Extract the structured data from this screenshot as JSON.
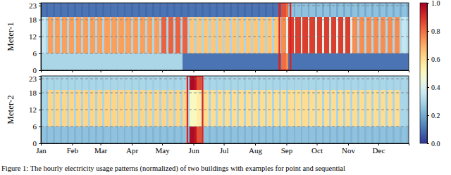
{
  "chart_data": {
    "type": "heatmap",
    "color": "RdYlBu_r",
    "grid": true,
    "x": [
      0,
      5,
      7,
      12,
      14,
      19,
      21,
      26,
      28,
      33,
      35,
      40,
      42,
      47,
      49,
      54,
      56,
      61,
      63,
      68,
      70,
      75,
      77,
      82,
      84,
      89,
      91,
      96,
      98,
      103,
      105,
      110,
      112,
      117,
      119,
      124,
      126,
      131,
      133,
      138,
      140,
      145,
      147,
      152,
      154,
      159,
      161,
      166,
      168,
      173,
      175,
      180,
      182,
      187,
      189,
      194,
      196,
      201,
      203,
      208,
      210,
      215,
      217,
      222,
      224,
      229,
      231,
      236,
      238,
      243,
      245,
      250,
      252,
      257,
      259,
      264,
      266,
      271,
      273,
      278,
      280,
      285,
      287,
      292,
      294,
      299,
      301,
      306,
      308,
      313,
      315,
      320,
      322,
      327,
      329,
      334,
      336,
      341,
      343,
      348,
      350,
      355,
      357,
      362
    ],
    "y": [
      0,
      6,
      19
    ],
    "xlim": [
      0,
      364
    ],
    "xticks": [
      {
        "value": 0,
        "label": "Jan"
      },
      {
        "value": 31,
        "label": "Feb"
      },
      {
        "value": 59,
        "label": "Mar"
      },
      {
        "value": 90,
        "label": "Apr"
      },
      {
        "value": 120,
        "label": "May"
      },
      {
        "value": 151,
        "label": "Jun"
      },
      {
        "value": 181,
        "label": "Jul"
      },
      {
        "value": 212,
        "label": "Aug"
      },
      {
        "value": 243,
        "label": "Sep"
      },
      {
        "value": 273,
        "label": "Oct"
      },
      {
        "value": 304,
        "label": "Nov"
      },
      {
        "value": 334,
        "label": "Dec"
      }
    ],
    "ylim": [
      0,
      24
    ],
    "yticks": [
      0,
      6,
      12,
      18,
      23
    ],
    "colorbar": {
      "lim": [
        0,
        1
      ],
      "ticks": [
        {
          "value": 0,
          "label": "0.0"
        },
        {
          "value": 0.2,
          "label": "0.2"
        },
        {
          "value": 0.4,
          "label": "0.4"
        },
        {
          "value": 0.6,
          "label": "0.6"
        },
        {
          "value": 0.8,
          "label": "0.8"
        },
        {
          "value": 1,
          "label": "1.0"
        }
      ]
    },
    "panels": [
      {
        "ylabel": "Meter-1",
        "cells": [
          [
            0.3,
            0.3,
            0.3,
            0.3,
            0.3,
            0.3,
            0.3,
            0.3,
            0.3,
            0.3,
            0.3,
            0.3,
            0.3,
            0.3,
            0.3,
            0.3,
            0.3,
            0.3,
            0.3,
            0.3,
            0.3,
            0.3,
            0.3,
            0.3,
            0.3,
            0.3,
            0.3,
            0.3,
            0.3,
            0.3,
            0.3,
            0.3,
            0.3,
            0.3,
            0.3,
            0.3,
            0.3,
            0.3,
            0.3,
            0.3,
            0.1,
            0.1,
            0.1,
            0.1,
            0.1,
            0.1,
            0.1,
            0.1,
            0.1,
            0.1,
            0.1,
            0.1,
            0.1,
            0.1,
            0.1,
            0.1,
            0.1,
            0.1,
            0.1,
            0.1,
            0.1,
            0.1,
            0.1,
            0.1,
            0.1,
            0.1,
            0.1,
            0.1,
            0.8,
            0.75,
            0.1,
            0.1,
            0.1,
            0.1,
            0.1,
            0.1,
            0.1,
            0.1,
            0.1,
            0.1,
            0.1,
            0.1,
            0.1,
            0.1,
            0.1,
            0.1,
            0.1,
            0.1,
            0.1,
            0.1,
            0.1,
            0.1,
            0.1,
            0.1,
            0.1,
            0.1,
            0.1,
            0.1,
            0.1,
            0.1,
            0.1,
            0.1,
            0.1,
            0.1
          ],
          [
            0.35,
            0.3,
            0.72,
            0.3,
            0.72,
            0.3,
            0.72,
            0.3,
            0.72,
            0.3,
            0.72,
            0.3,
            0.72,
            0.3,
            0.72,
            0.3,
            0.72,
            0.3,
            0.72,
            0.3,
            0.72,
            0.3,
            0.72,
            0.3,
            0.72,
            0.3,
            0.72,
            0.3,
            0.72,
            0.3,
            0.72,
            0.3,
            0.72,
            0.3,
            0.82,
            0.3,
            0.82,
            0.3,
            0.82,
            0.3,
            0.82,
            0.3,
            0.65,
            0.3,
            0.65,
            0.3,
            0.65,
            0.3,
            0.65,
            0.3,
            0.65,
            0.3,
            0.65,
            0.3,
            0.65,
            0.3,
            0.65,
            0.3,
            0.65,
            0.3,
            0.65,
            0.3,
            0.65,
            0.3,
            0.65,
            0.3,
            0.65,
            0.3,
            0.75,
            0.4,
            0.88,
            0.4,
            0.88,
            0.4,
            0.88,
            0.4,
            0.88,
            0.4,
            0.88,
            0.4,
            0.88,
            0.4,
            0.88,
            0.4,
            0.88,
            0.4,
            0.88,
            0.4,
            0.75,
            0.3,
            0.75,
            0.3,
            0.75,
            0.3,
            0.75,
            0.3,
            0.75,
            0.3,
            0.75,
            0.3,
            0.75,
            0.3,
            0.35,
            0.3
          ],
          [
            0.1,
            0.08,
            0.1,
            0.08,
            0.1,
            0.08,
            0.1,
            0.08,
            0.1,
            0.08,
            0.1,
            0.08,
            0.1,
            0.08,
            0.1,
            0.08,
            0.1,
            0.08,
            0.1,
            0.08,
            0.1,
            0.08,
            0.1,
            0.08,
            0.1,
            0.08,
            0.1,
            0.08,
            0.1,
            0.08,
            0.1,
            0.08,
            0.1,
            0.08,
            0.1,
            0.08,
            0.1,
            0.08,
            0.1,
            0.08,
            0.1,
            0.08,
            0.1,
            0.08,
            0.1,
            0.08,
            0.1,
            0.08,
            0.1,
            0.08,
            0.1,
            0.08,
            0.1,
            0.08,
            0.1,
            0.08,
            0.1,
            0.08,
            0.1,
            0.08,
            0.1,
            0.08,
            0.1,
            0.08,
            0.1,
            0.08,
            0.1,
            0.08,
            0.85,
            0.8,
            0.25,
            0.2,
            0.25,
            0.2,
            0.25,
            0.2,
            0.25,
            0.2,
            0.25,
            0.2,
            0.25,
            0.2,
            0.25,
            0.2,
            0.25,
            0.2,
            0.25,
            0.2,
            0.25,
            0.2,
            0.25,
            0.2,
            0.25,
            0.2,
            0.25,
            0.2,
            0.25,
            0.2,
            0.25,
            0.2,
            0.25,
            0.2,
            0.25,
            0.2
          ]
        ],
        "highlights": [
          {
            "x0": 236,
            "x1": 247,
            "y0": 0,
            "y1": 24
          }
        ]
      },
      {
        "ylabel": "Meter-2",
        "cells": [
          [
            0.25,
            0.22,
            0.25,
            0.22,
            0.25,
            0.22,
            0.25,
            0.22,
            0.25,
            0.22,
            0.25,
            0.22,
            0.25,
            0.22,
            0.25,
            0.22,
            0.25,
            0.22,
            0.25,
            0.22,
            0.25,
            0.22,
            0.25,
            0.22,
            0.25,
            0.22,
            0.25,
            0.22,
            0.25,
            0.22,
            0.25,
            0.22,
            0.25,
            0.22,
            0.25,
            0.22,
            0.25,
            0.22,
            0.25,
            0.22,
            0.25,
            0.22,
            0.98,
            0.95,
            0.85,
            0.22,
            0.25,
            0.22,
            0.25,
            0.22,
            0.25,
            0.22,
            0.25,
            0.22,
            0.25,
            0.22,
            0.25,
            0.22,
            0.25,
            0.22,
            0.25,
            0.22,
            0.25,
            0.22,
            0.25,
            0.22,
            0.25,
            0.22,
            0.25,
            0.22,
            0.25,
            0.22,
            0.25,
            0.22,
            0.25,
            0.22,
            0.25,
            0.22,
            0.25,
            0.22,
            0.25,
            0.22,
            0.25,
            0.22,
            0.25,
            0.22,
            0.25,
            0.22,
            0.25,
            0.22,
            0.25,
            0.22,
            0.25,
            0.22,
            0.25,
            0.22,
            0.25,
            0.22,
            0.25,
            0.22,
            0.25,
            0.22,
            0.25,
            0.22
          ],
          [
            0.3,
            0.28,
            0.62,
            0.3,
            0.62,
            0.3,
            0.62,
            0.3,
            0.62,
            0.3,
            0.62,
            0.3,
            0.62,
            0.3,
            0.62,
            0.3,
            0.62,
            0.3,
            0.62,
            0.3,
            0.62,
            0.3,
            0.62,
            0.3,
            0.62,
            0.3,
            0.62,
            0.3,
            0.62,
            0.3,
            0.62,
            0.3,
            0.62,
            0.3,
            0.62,
            0.3,
            0.62,
            0.3,
            0.62,
            0.3,
            0.62,
            0.3,
            0.5,
            0.5,
            0.55,
            0.3,
            0.6,
            0.3,
            0.6,
            0.3,
            0.6,
            0.3,
            0.6,
            0.3,
            0.6,
            0.3,
            0.6,
            0.3,
            0.6,
            0.3,
            0.6,
            0.3,
            0.6,
            0.3,
            0.6,
            0.3,
            0.6,
            0.3,
            0.6,
            0.3,
            0.6,
            0.3,
            0.6,
            0.3,
            0.6,
            0.3,
            0.6,
            0.3,
            0.6,
            0.3,
            0.6,
            0.3,
            0.6,
            0.3,
            0.6,
            0.3,
            0.6,
            0.3,
            0.6,
            0.3,
            0.6,
            0.3,
            0.6,
            0.3,
            0.6,
            0.3,
            0.6,
            0.3,
            0.6,
            0.3,
            0.6,
            0.3,
            0.3,
            0.28
          ],
          [
            0.3,
            0.28,
            0.3,
            0.28,
            0.3,
            0.28,
            0.3,
            0.28,
            0.3,
            0.28,
            0.3,
            0.28,
            0.3,
            0.28,
            0.3,
            0.28,
            0.3,
            0.28,
            0.3,
            0.28,
            0.3,
            0.28,
            0.3,
            0.28,
            0.3,
            0.28,
            0.3,
            0.28,
            0.3,
            0.28,
            0.3,
            0.28,
            0.3,
            0.28,
            0.3,
            0.28,
            0.3,
            0.28,
            0.3,
            0.28,
            0.3,
            0.28,
            0.98,
            0.95,
            0.85,
            0.28,
            0.3,
            0.28,
            0.3,
            0.28,
            0.3,
            0.28,
            0.3,
            0.28,
            0.3,
            0.28,
            0.3,
            0.28,
            0.3,
            0.28,
            0.3,
            0.28,
            0.3,
            0.28,
            0.3,
            0.28,
            0.3,
            0.28,
            0.3,
            0.28,
            0.3,
            0.28,
            0.3,
            0.28,
            0.3,
            0.28,
            0.3,
            0.28,
            0.3,
            0.28,
            0.3,
            0.28,
            0.3,
            0.28,
            0.3,
            0.28,
            0.3,
            0.28,
            0.3,
            0.28,
            0.3,
            0.28,
            0.3,
            0.28,
            0.3,
            0.28,
            0.3,
            0.28,
            0.3,
            0.28,
            0.3,
            0.28,
            0.3,
            0.28
          ]
        ],
        "highlights": [
          {
            "x0": 145,
            "x1": 160,
            "y0": 0,
            "y1": 24
          }
        ]
      }
    ]
  },
  "caption": "Figure 1: The hourly electricity usage patterns (normalized) of two buildings with examples for point and sequential"
}
